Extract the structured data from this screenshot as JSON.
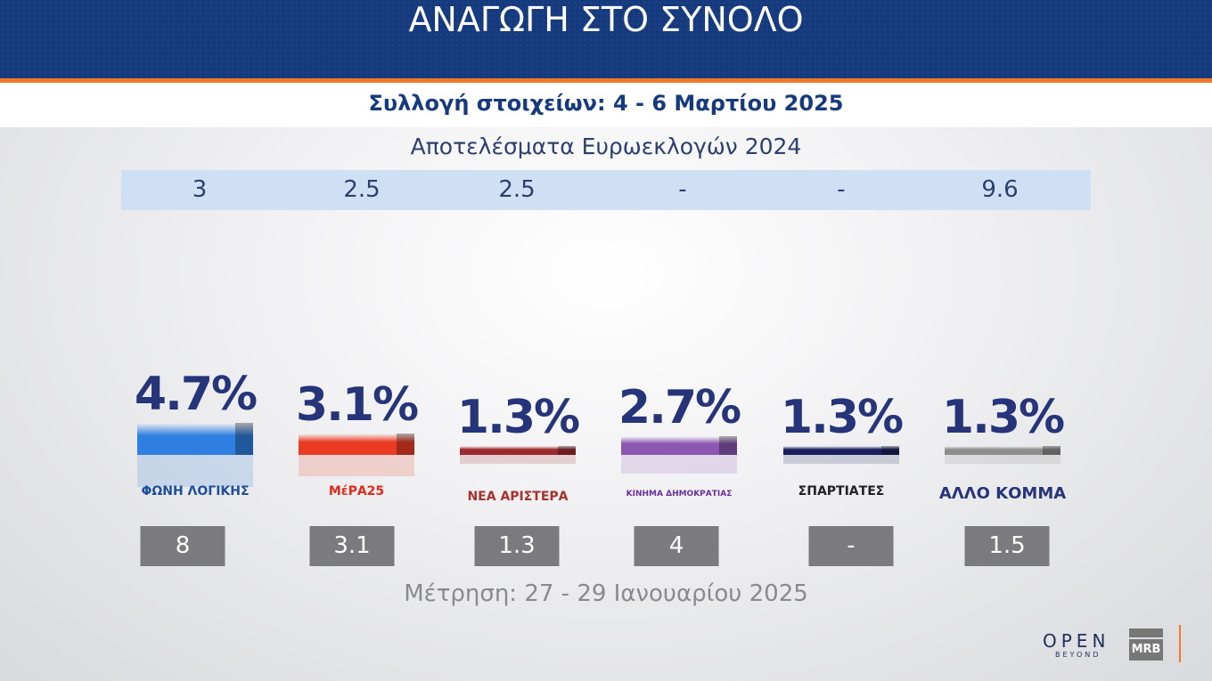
{
  "header": {
    "title": "ΑΝΑΓΩΓΗ ΣΤΟ ΣΥΝΟΛΟ",
    "subtitle": "Συλλογή στοιχείων: 4 - 6 Μαρτίου 2025"
  },
  "euro": {
    "title": "Αποτελέσματα Ευρωεκλογών 2024",
    "values": [
      "3",
      "2.5",
      "2.5",
      "-",
      "-",
      "9.6"
    ]
  },
  "footer": {
    "measurement": "Μέτρηση: 27 - 29 Ιανουαρίου 2025",
    "brand": "OPEN",
    "brand_sub": "BEYOND",
    "pollster": "MRB"
  },
  "chart_data": {
    "type": "bar",
    "title": "ΑΝΑΓΩΓΗ ΣΤΟ ΣΥΝΟΛΟ",
    "categories": [
      "ΦΩΝΗ ΛΟΓΙΚΗΣ",
      "ΜέΡΑ25",
      "ΝΕΑ ΑΡΙΣΤΕΡΑ",
      "ΚΙΝΗΜΑ ΔΗΜΟΚΡΑΤΙΑΣ",
      "ΣΠΑΡΤΙΑΤΕΣ",
      "ΑΛΛΟ ΚΟΜΜΑ"
    ],
    "values": [
      4.7,
      3.1,
      1.3,
      2.7,
      1.3,
      1.3
    ],
    "labels": [
      "4.7%",
      "3.1%",
      "1.3%",
      "2.7%",
      "1.3%",
      "1.3%"
    ],
    "previous": [
      "8",
      "3.1",
      "1.3",
      "4",
      "-",
      "1.5"
    ],
    "colors": [
      "#2f7fe0",
      "#ea3b24",
      "#9a2a2e",
      "#8c57b0",
      "#1a1f5c",
      "#8d8d8d"
    ],
    "logo_colors": [
      "#1d4f9c",
      "#e02a1c",
      "#a8312c",
      "#6a2fa0",
      "#222222",
      "#263579"
    ]
  }
}
